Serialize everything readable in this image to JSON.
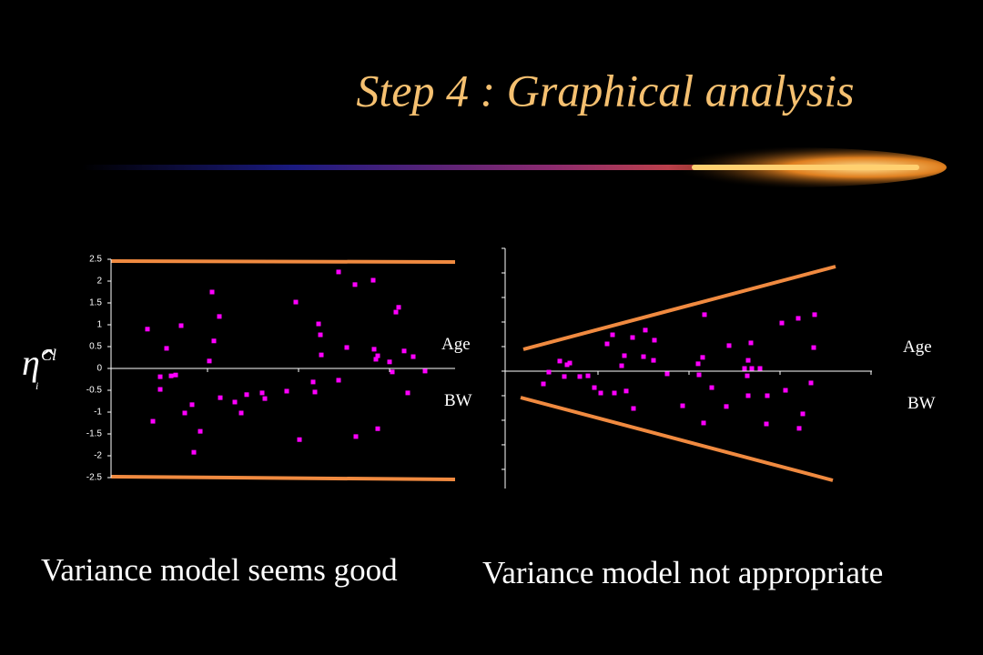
{
  "title": "Step 4 : Graphical analysis",
  "chart_data": [
    {
      "type": "scatter",
      "y_label": {
        "symbol": "η̂",
        "superscript": "Cl",
        "subscript": "i"
      },
      "annotations": [
        "Age",
        "BW"
      ],
      "caption": "Variance model seems good",
      "color": "#ff00ff",
      "show_tick_labels": true,
      "xlim": [
        0,
        3.78
      ],
      "xticks": [
        1.06,
        2.06,
        3.06
      ],
      "ylim": [
        -2.5,
        2.5
      ],
      "yticks": [
        2.5,
        2,
        1.5,
        1,
        0.5,
        0,
        -0.5,
        -1,
        -1.5,
        -2,
        -2.5
      ],
      "x": [
        0.4,
        0.46,
        0.54,
        0.54,
        0.61,
        0.66,
        0.71,
        0.77,
        0.81,
        0.89,
        0.91,
        0.98,
        1.08,
        1.11,
        1.13,
        1.19,
        1.2,
        1.36,
        1.43,
        1.49,
        1.66,
        1.69,
        1.93,
        2.03,
        2.07,
        2.22,
        2.24,
        2.28,
        2.3,
        2.31,
        2.5,
        2.5,
        2.59,
        2.68,
        2.69,
        2.88,
        2.89,
        2.91,
        2.93,
        2.93,
        3.06,
        3.09,
        3.13,
        3.16,
        3.22,
        3.26,
        3.32,
        3.45
      ],
      "values": [
        0.9,
        -1.21,
        -0.19,
        -0.48,
        0.46,
        -0.17,
        -0.15,
        0.98,
        -1.02,
        -0.83,
        -1.92,
        -1.44,
        0.17,
        1.75,
        0.63,
        1.19,
        -0.67,
        -0.77,
        -1.02,
        -0.6,
        -0.56,
        -0.69,
        -0.52,
        1.52,
        -1.63,
        -0.31,
        -0.54,
        1.02,
        0.77,
        0.31,
        2.21,
        -0.27,
        0.48,
        1.92,
        -1.56,
        2.02,
        0.44,
        0.21,
        0.29,
        -1.38,
        0.15,
        -0.08,
        1.29,
        1.4,
        0.4,
        -0.56,
        0.27,
        -0.06
      ]
    },
    {
      "type": "scatter",
      "annotations": [
        "Age",
        "BW"
      ],
      "caption": "Variance model not appropriate",
      "color": "#ff00ff",
      "show_tick_labels": false,
      "xlim": [
        0,
        4.03
      ],
      "xticks": [
        1.02,
        2.02,
        3.02,
        4.02
      ],
      "ylim": [
        -4.78,
        5
      ],
      "yticks": [
        5,
        4,
        3,
        2,
        1,
        0,
        -1,
        -2,
        -3,
        -4
      ],
      "x": [
        0.42,
        0.48,
        0.6,
        0.65,
        0.68,
        0.71,
        0.82,
        0.91,
        0.98,
        1.05,
        1.12,
        1.18,
        1.2,
        1.28,
        1.31,
        1.33,
        1.4,
        1.41,
        1.52,
        1.54,
        1.63,
        1.64,
        1.78,
        1.95,
        2.12,
        2.13,
        2.17,
        2.18,
        2.19,
        2.27,
        2.43,
        2.46,
        2.63,
        2.66,
        2.67,
        2.67,
        2.7,
        2.71,
        2.8,
        2.87,
        2.88,
        3.04,
        3.08,
        3.22,
        3.23,
        3.27,
        3.36,
        3.39,
        3.4
      ],
      "values": [
        -0.52,
        -0.04,
        0.41,
        -0.22,
        0.26,
        0.33,
        -0.22,
        -0.19,
        -0.67,
        -0.89,
        1.11,
        1.48,
        -0.89,
        0.22,
        0.63,
        -0.81,
        1.37,
        -1.52,
        0.59,
        1.67,
        0.44,
        1.26,
        -0.11,
        -1.41,
        0.3,
        -0.15,
        0.56,
        -2.11,
        2.3,
        -0.67,
        -1.44,
        1.04,
        0.11,
        -0.19,
        0.44,
        -1.0,
        1.15,
        0.11,
        0.11,
        -2.15,
        -1.0,
        1.96,
        -0.78,
        2.15,
        -2.33,
        -1.74,
        -0.48,
        0.96,
        2.3
      ]
    }
  ]
}
